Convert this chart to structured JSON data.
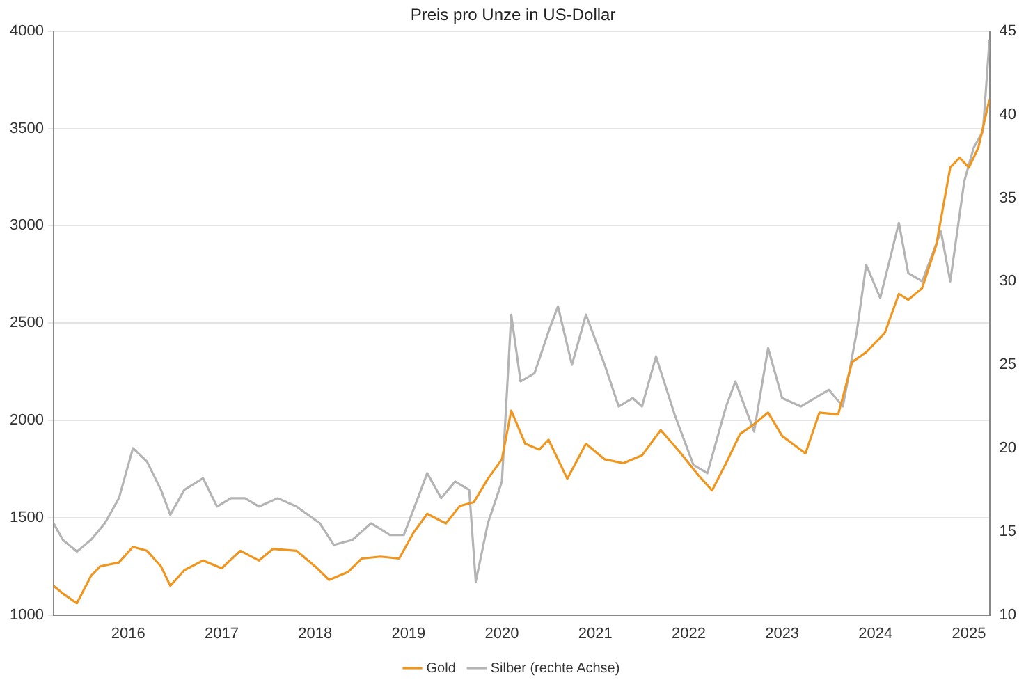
{
  "chart_data": {
    "type": "line",
    "title": "Preis pro Unze in US-Dollar",
    "xlim": [
      2015.7,
      2025.72
    ],
    "xticks": [
      {
        "value": 2016.5,
        "label": "2016"
      },
      {
        "value": 2017.5,
        "label": "2017"
      },
      {
        "value": 2018.5,
        "label": "2018"
      },
      {
        "value": 2019.5,
        "label": "2019"
      },
      {
        "value": 2020.5,
        "label": "2020"
      },
      {
        "value": 2021.5,
        "label": "2021"
      },
      {
        "value": 2022.5,
        "label": "2022"
      },
      {
        "value": 2023.5,
        "label": "2023"
      },
      {
        "value": 2024.5,
        "label": "2024"
      },
      {
        "value": 2025.5,
        "label": "2025"
      }
    ],
    "ylim": [
      1000,
      4000
    ],
    "yticks": [
      1000,
      1500,
      2000,
      2500,
      3000,
      3500,
      4000
    ],
    "y2lim": [
      10,
      45
    ],
    "y2ticks": [
      10,
      15,
      20,
      25,
      30,
      35,
      40,
      45
    ],
    "grid": "y",
    "legend": "bottom",
    "marker": "none",
    "line_style": "solid",
    "series": [
      {
        "name": "Gold",
        "color": "#f0961e",
        "x": [
          2015.7,
          2015.8,
          2015.95,
          2016.1,
          2016.2,
          2016.4,
          2016.55,
          2016.7,
          2016.85,
          2016.95,
          2017.1,
          2017.3,
          2017.5,
          2017.7,
          2017.9,
          2018.05,
          2018.3,
          2018.5,
          2018.65,
          2018.85,
          2019.0,
          2019.2,
          2019.4,
          2019.55,
          2019.7,
          2019.9,
          2020.05,
          2020.2,
          2020.35,
          2020.5,
          2020.6,
          2020.75,
          2020.9,
          2021.0,
          2021.2,
          2021.4,
          2021.6,
          2021.8,
          2022.0,
          2022.2,
          2022.4,
          2022.6,
          2022.75,
          2022.9,
          2023.05,
          2023.2,
          2023.35,
          2023.5,
          2023.75,
          2023.9,
          2024.1,
          2024.25,
          2024.4,
          2024.6,
          2024.75,
          2024.85,
          2025.0,
          2025.15,
          2025.3,
          2025.4,
          2025.5,
          2025.6,
          2025.72
        ],
        "values": [
          1150,
          1110,
          1060,
          1200,
          1250,
          1270,
          1350,
          1330,
          1250,
          1150,
          1230,
          1280,
          1240,
          1330,
          1280,
          1340,
          1330,
          1250,
          1180,
          1220,
          1290,
          1300,
          1290,
          1420,
          1520,
          1470,
          1560,
          1580,
          1700,
          1800,
          2050,
          1880,
          1850,
          1900,
          1700,
          1880,
          1800,
          1780,
          1820,
          1950,
          1840,
          1720,
          1640,
          1780,
          1930,
          1980,
          2040,
          1920,
          1830,
          2040,
          2030,
          2300,
          2350,
          2450,
          2650,
          2620,
          2680,
          2900,
          3300,
          3350,
          3300,
          3400,
          3650
        ]
      },
      {
        "name": "Silber (rechte Achse)",
        "color": "#b4b4b4",
        "axis": "y2",
        "x": [
          2015.7,
          2015.8,
          2015.95,
          2016.1,
          2016.25,
          2016.4,
          2016.55,
          2016.7,
          2016.85,
          2016.95,
          2017.1,
          2017.3,
          2017.45,
          2017.6,
          2017.75,
          2017.9,
          2018.1,
          2018.3,
          2018.55,
          2018.7,
          2018.9,
          2019.1,
          2019.3,
          2019.45,
          2019.6,
          2019.7,
          2019.85,
          2020.0,
          2020.15,
          2020.22,
          2020.35,
          2020.5,
          2020.6,
          2020.7,
          2020.85,
          2021.0,
          2021.1,
          2021.25,
          2021.4,
          2021.6,
          2021.75,
          2021.9,
          2022.0,
          2022.15,
          2022.35,
          2022.55,
          2022.7,
          2022.9,
          2023.0,
          2023.2,
          2023.35,
          2023.5,
          2023.7,
          2023.85,
          2024.0,
          2024.15,
          2024.3,
          2024.4,
          2024.55,
          2024.75,
          2024.85,
          2025.0,
          2025.2,
          2025.3,
          2025.45,
          2025.55,
          2025.65,
          2025.72
        ],
        "values": [
          15.5,
          14.5,
          13.8,
          14.5,
          15.5,
          17,
          20,
          19.2,
          17.5,
          16,
          17.5,
          18.2,
          16.5,
          17,
          17,
          16.5,
          17,
          16.5,
          15.5,
          14.2,
          14.5,
          15.5,
          14.8,
          14.8,
          17,
          18.5,
          17,
          18,
          17.5,
          12,
          15.5,
          18,
          28,
          24,
          24.5,
          27,
          28.5,
          25,
          28,
          25,
          22.5,
          23,
          22.5,
          25.5,
          22,
          19,
          18.5,
          22.5,
          24,
          21,
          26,
          23,
          22.5,
          23,
          23.5,
          22.5,
          27,
          31,
          29,
          33.5,
          30.5,
          30,
          33,
          30,
          36,
          38,
          39,
          44.5
        ]
      }
    ]
  }
}
